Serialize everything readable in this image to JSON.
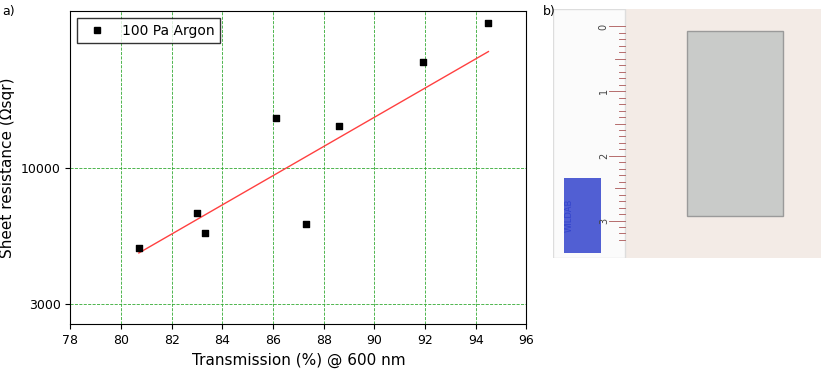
{
  "chart_data": {
    "type": "scatter",
    "panel_label": "a)",
    "x_label": "Transmission (%) @ 600 nm",
    "y_label": "Sheet resistance (Ωsqr)",
    "log": "y",
    "grid": true,
    "legend": "upper left",
    "xlim": [
      78,
      96
    ],
    "xticks": [
      78,
      80,
      82,
      84,
      86,
      88,
      90,
      92,
      94,
      96
    ],
    "ylim": [
      2500,
      40000
    ],
    "yticks": [
      3000,
      10000
    ],
    "series": [
      {
        "name": "100 Pa Argon",
        "type": "scatter",
        "color": "#000000",
        "marker": "square",
        "x": [
          80.7,
          83.0,
          83.3,
          86.1,
          87.3,
          88.6,
          91.9,
          94.5
        ],
        "values": [
          4900,
          6700,
          5600,
          15500,
          6100,
          14500,
          25500,
          36000
        ]
      },
      {
        "type": "line",
        "color": "#ff4040",
        "line_style": "solid",
        "x": [
          80.7,
          94.5
        ],
        "values": [
          4700,
          28000
        ]
      }
    ]
  },
  "photo": {
    "label": "b)",
    "ruler_numbers": [
      0,
      1,
      2,
      3
    ],
    "ruler_brand": "WILDAB"
  }
}
